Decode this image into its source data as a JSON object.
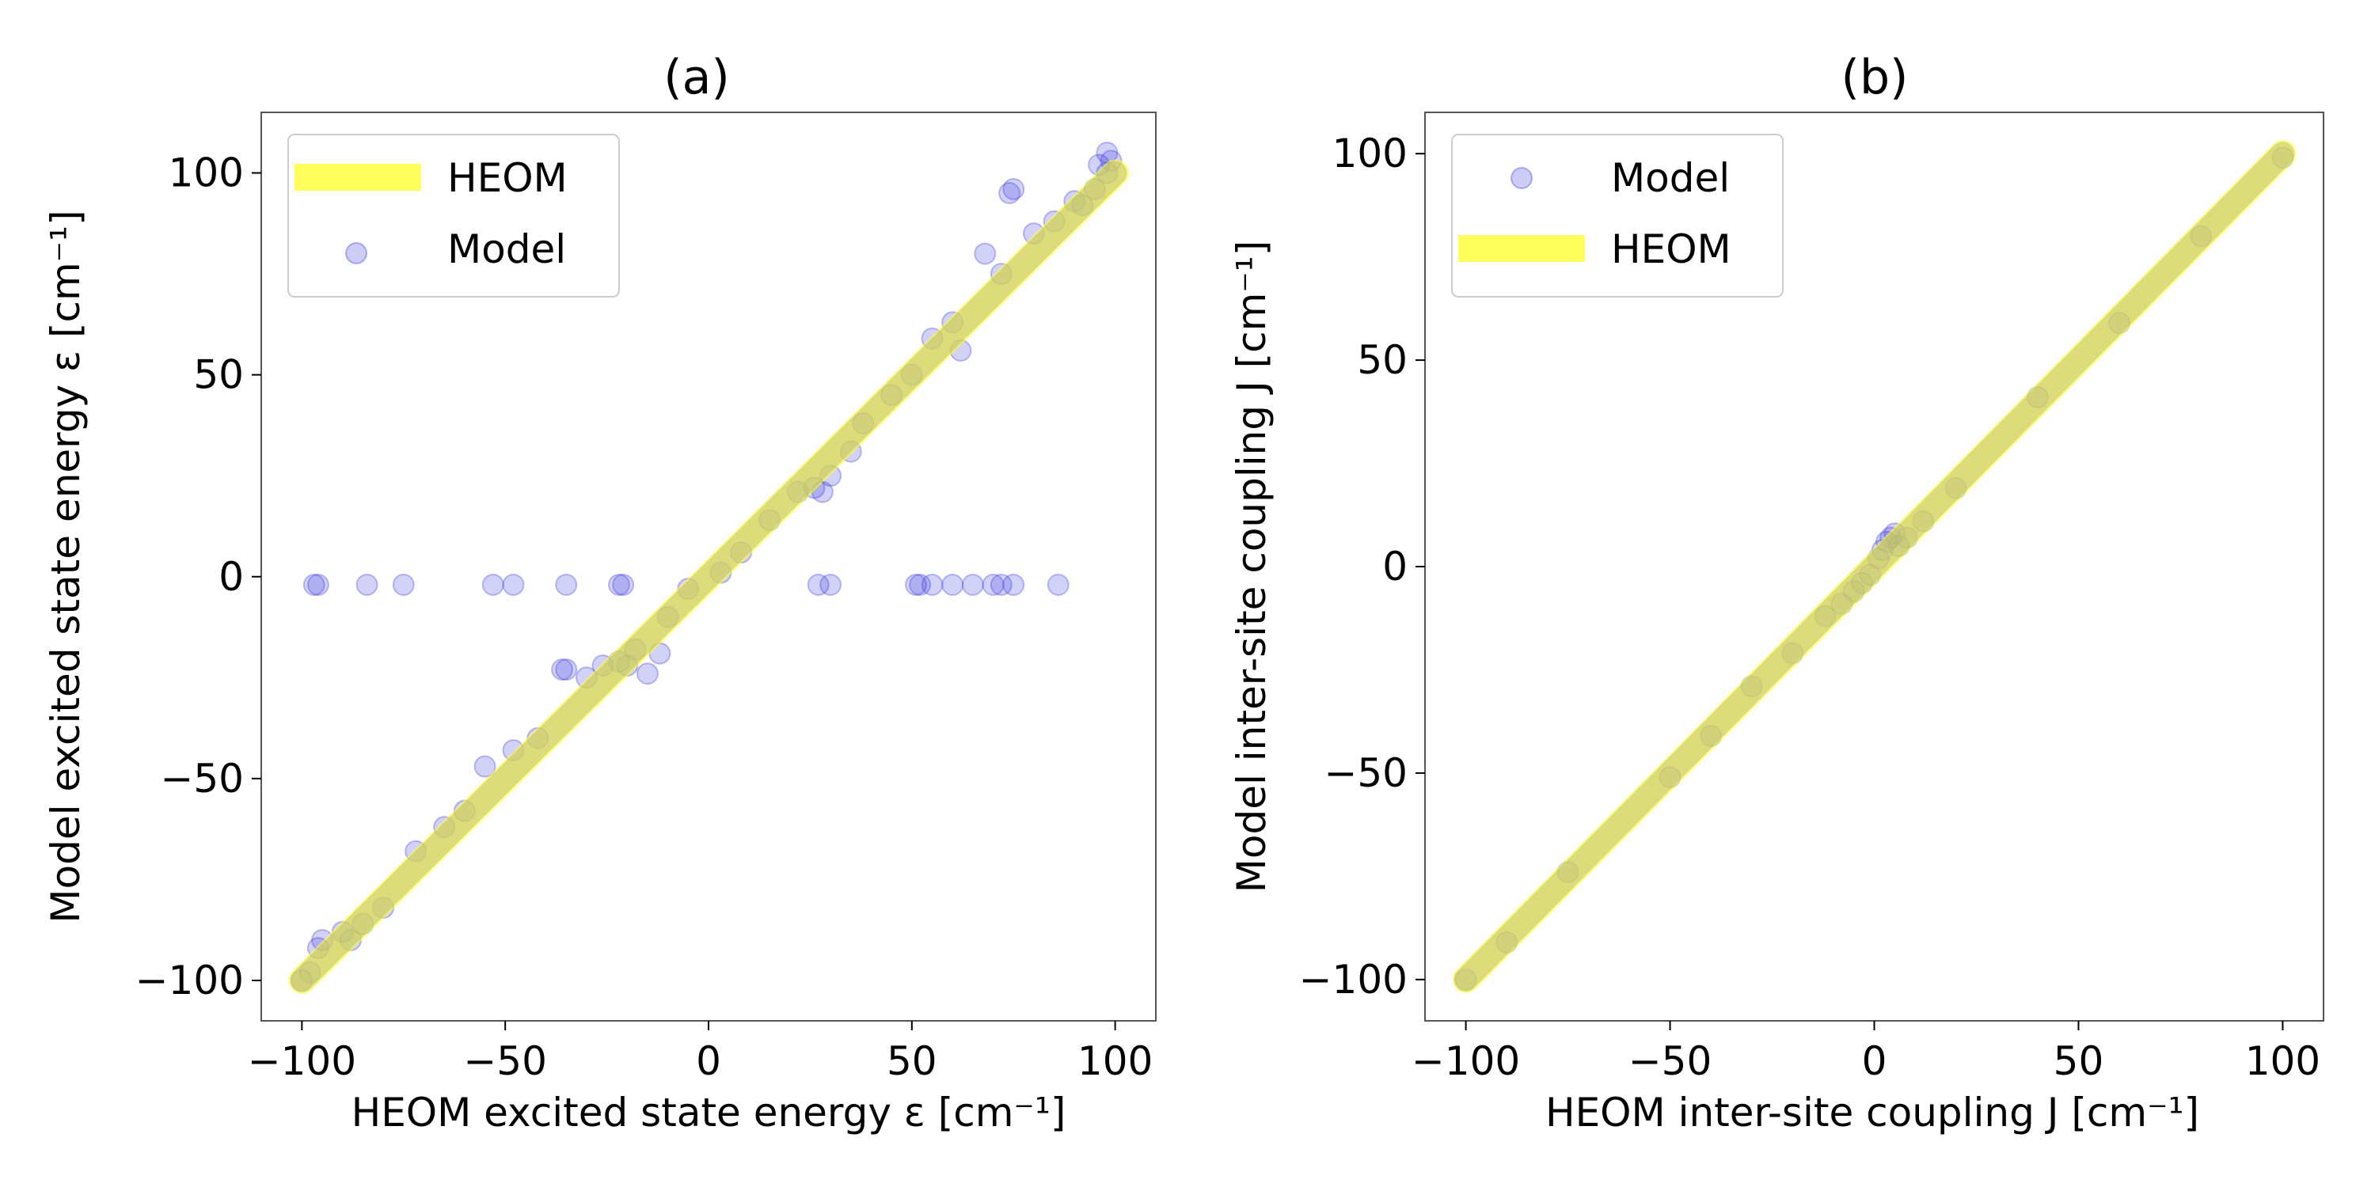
{
  "colors": {
    "heom": "#ffff33",
    "model": "#3333dd",
    "overlap": "#b3b34d",
    "frame": "#555555"
  },
  "chart_data": [
    {
      "type": "scatter",
      "title": "(a)",
      "xlabel": "HEOM excited state energy ε [cm⁻¹]",
      "ylabel": "Model excited state energy ε [cm⁻¹]",
      "xlim": [
        -110,
        110
      ],
      "ylim": [
        -110,
        115
      ],
      "xticks": [
        -100,
        -50,
        0,
        50,
        100
      ],
      "yticks": [
        -100,
        -50,
        0,
        50,
        100
      ],
      "xtick_labels": [
        "−100",
        "−50",
        "0",
        "50",
        "100"
      ],
      "ytick_labels": [
        "−100",
        "−50",
        "0",
        "50",
        "100"
      ],
      "legend_position": "upper-left",
      "legend": [
        {
          "label": "HEOM",
          "kind": "line"
        },
        {
          "label": "Model",
          "kind": "marker"
        }
      ],
      "series": [
        {
          "name": "HEOM",
          "kind": "line",
          "x": [
            -100,
            100
          ],
          "y": [
            -100,
            100
          ]
        },
        {
          "name": "Model",
          "kind": "scatter",
          "x": [
            -97,
            -96,
            -84,
            -75,
            -53,
            -48,
            -35,
            -22,
            -21,
            27,
            30,
            51,
            52,
            55,
            60,
            65,
            70,
            72,
            75,
            86,
            -100,
            -98,
            -96,
            -95,
            -90,
            -88,
            -85,
            -80,
            -72,
            -65,
            -60,
            -55,
            -48,
            -42,
            -36,
            -35,
            -30,
            -26,
            -22,
            -20,
            -18,
            -15,
            -12,
            -10,
            -5,
            3,
            8,
            15,
            22,
            26,
            28,
            30,
            35,
            38,
            45,
            50,
            55,
            60,
            62,
            68,
            72,
            74,
            75,
            80,
            85,
            90,
            92,
            95,
            96,
            98,
            98,
            99
          ],
          "y": [
            -2,
            -2,
            -2,
            -2,
            -2,
            -2,
            -2,
            -2,
            -2,
            -2,
            -2,
            -2,
            -2,
            -2,
            -2,
            -2,
            -2,
            -2,
            -2,
            -2,
            -100,
            -98,
            -92,
            -90,
            -88,
            -90,
            -86,
            -82,
            -68,
            -62,
            -58,
            -47,
            -43,
            -40,
            -23,
            -23,
            -25,
            -22,
            -21,
            -22,
            -18,
            -24,
            -19,
            -10,
            -3,
            1,
            6,
            14,
            21,
            22,
            21,
            25,
            31,
            38,
            45,
            50,
            59,
            63,
            56,
            80,
            75,
            95,
            96,
            85,
            88,
            93,
            92,
            96,
            102,
            100,
            105,
            103
          ]
        }
      ]
    },
    {
      "type": "scatter",
      "title": "(b)",
      "xlabel": "HEOM inter-site coupling J [cm⁻¹]",
      "ylabel": "Model inter-site coupling J [cm⁻¹]",
      "xlim": [
        -110,
        110
      ],
      "ylim": [
        -110,
        110
      ],
      "xticks": [
        -100,
        -50,
        0,
        50,
        100
      ],
      "yticks": [
        -100,
        -50,
        0,
        50,
        100
      ],
      "xtick_labels": [
        "−100",
        "−50",
        "0",
        "50",
        "100"
      ],
      "ytick_labels": [
        "−100",
        "−50",
        "0",
        "50",
        "100"
      ],
      "legend_position": "upper-left",
      "legend": [
        {
          "label": "Model",
          "kind": "marker"
        },
        {
          "label": "HEOM",
          "kind": "line"
        }
      ],
      "series": [
        {
          "name": "HEOM",
          "kind": "line",
          "x": [
            -100,
            100
          ],
          "y": [
            -100,
            100
          ]
        },
        {
          "name": "Model",
          "kind": "scatter",
          "x": [
            -100,
            -90,
            -75,
            -50,
            -40,
            -30,
            -20,
            -12,
            -8,
            -5,
            -3,
            -1,
            1,
            2,
            3,
            4,
            5,
            6,
            8,
            12,
            20,
            40,
            60,
            80,
            100
          ],
          "y": [
            -100,
            -91,
            -74,
            -51,
            -41,
            -29,
            -21,
            -12,
            -9,
            -6,
            -4,
            -2,
            2,
            4,
            6,
            7,
            8,
            5,
            7,
            11,
            19,
            41,
            59,
            80,
            99
          ]
        }
      ]
    }
  ]
}
